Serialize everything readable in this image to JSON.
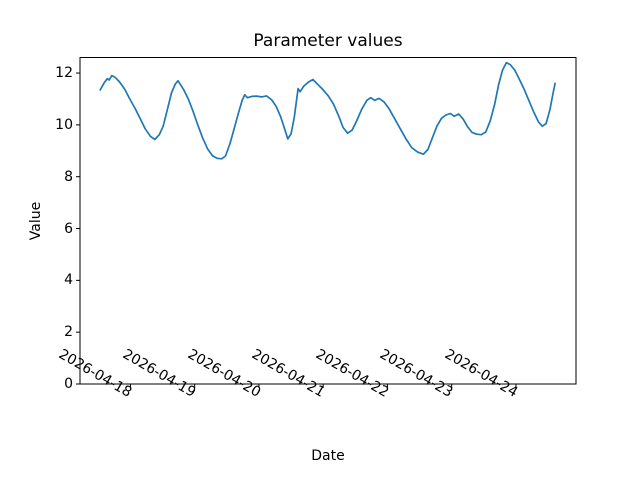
{
  "figure": {
    "background": "#ffffff"
  },
  "chart_data": {
    "type": "line",
    "title": "Parameter values",
    "xlabel": "Date",
    "ylabel": "Value",
    "x_tick_labels": [
      "2026-04-18",
      "2026-04-19",
      "2026-04-20",
      "2026-04-21",
      "2026-04-22",
      "2026-04-23",
      "2026-04-24"
    ],
    "y_ticks": [
      0,
      2,
      4,
      6,
      8,
      10,
      12
    ],
    "ylim": [
      0,
      12.6
    ],
    "xlim_days": [
      -0.785,
      6.935
    ],
    "x_unit": "days since 2026-04-18 00:00",
    "grid": false,
    "line_color": "#1f77b4",
    "axis_color": "#000000",
    "series": [
      {
        "name": "Parameter values",
        "x_days": [
          -0.47,
          -0.41,
          -0.36,
          -0.33,
          -0.29,
          -0.24,
          -0.17,
          -0.09,
          -0.01,
          0.07,
          0.15,
          0.23,
          0.31,
          0.38,
          0.45,
          0.51,
          0.57,
          0.64,
          0.7,
          0.74,
          0.78,
          0.83,
          0.9,
          0.97,
          1.04,
          1.12,
          1.2,
          1.28,
          1.35,
          1.42,
          1.48,
          1.55,
          1.62,
          1.68,
          1.74,
          1.78,
          1.82,
          1.89,
          1.96,
          2.04,
          2.12,
          2.2,
          2.27,
          2.34,
          2.4,
          2.45,
          2.5,
          2.55,
          2.61,
          2.64,
          2.7,
          2.77,
          2.84,
          2.92,
          3.0,
          3.08,
          3.16,
          3.24,
          3.31,
          3.38,
          3.45,
          3.52,
          3.6,
          3.68,
          3.74,
          3.8,
          3.87,
          3.95,
          4.03,
          4.11,
          4.2,
          4.29,
          4.38,
          4.47,
          4.56,
          4.63,
          4.7,
          4.77,
          4.84,
          4.91,
          4.98,
          5.04,
          5.11,
          5.18,
          5.25,
          5.32,
          5.39,
          5.46,
          5.53,
          5.6,
          5.67,
          5.73,
          5.79,
          5.85,
          5.91,
          5.98,
          6.05,
          6.12,
          6.2,
          6.28,
          6.35,
          6.41,
          6.47,
          6.53,
          6.58,
          6.61
        ],
        "values": [
          11.35,
          11.62,
          11.78,
          11.73,
          11.9,
          11.84,
          11.66,
          11.38,
          11.0,
          10.65,
          10.25,
          9.85,
          9.56,
          9.44,
          9.62,
          9.95,
          10.55,
          11.25,
          11.58,
          11.7,
          11.55,
          11.35,
          11.0,
          10.55,
          10.05,
          9.52,
          9.08,
          8.8,
          8.71,
          8.69,
          8.8,
          9.28,
          9.9,
          10.45,
          10.95,
          11.16,
          11.05,
          11.1,
          11.11,
          11.08,
          11.12,
          10.96,
          10.7,
          10.3,
          9.85,
          9.46,
          9.65,
          10.3,
          11.4,
          11.28,
          11.5,
          11.65,
          11.75,
          11.55,
          11.35,
          11.12,
          10.8,
          10.35,
          9.9,
          9.68,
          9.8,
          10.15,
          10.6,
          10.95,
          11.05,
          10.95,
          11.02,
          10.88,
          10.6,
          10.25,
          9.85,
          9.45,
          9.12,
          8.95,
          8.87,
          9.05,
          9.5,
          9.95,
          10.25,
          10.38,
          10.44,
          10.33,
          10.42,
          10.22,
          9.92,
          9.7,
          9.64,
          9.62,
          9.72,
          10.15,
          10.8,
          11.55,
          12.1,
          12.4,
          12.33,
          12.12,
          11.78,
          11.42,
          10.95,
          10.48,
          10.12,
          9.95,
          10.05,
          10.6,
          11.25,
          11.6
        ]
      }
    ]
  }
}
